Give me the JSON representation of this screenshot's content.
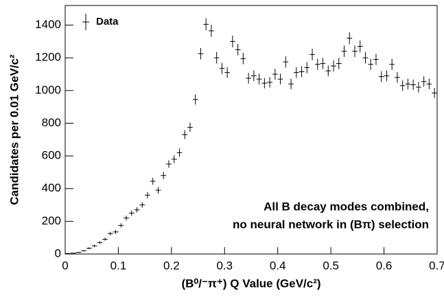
{
  "chart_data": {
    "type": "errorbar",
    "xlabel": "(B⁰/⁻π⁺)  Q Value (GeV/c²)",
    "ylabel": "Candidates per 0.01 GeV/c²",
    "annotations": [
      "All B decay modes combined,",
      "no neural network in (Bπ) selection"
    ],
    "xlim": [
      0,
      0.7
    ],
    "ylim": [
      0,
      1520
    ],
    "xticks": [
      0,
      0.1,
      0.2,
      0.3,
      0.4,
      0.5,
      0.6,
      0.7
    ],
    "yticks": [
      0,
      200,
      400,
      600,
      800,
      1000,
      1200,
      1400
    ],
    "legend": "upper left",
    "xerr": 0.005,
    "series": [
      {
        "name": "Data",
        "color": "#000000",
        "x": [
          0.005,
          0.015,
          0.025,
          0.035,
          0.045,
          0.055,
          0.065,
          0.075,
          0.085,
          0.095,
          0.105,
          0.115,
          0.125,
          0.135,
          0.145,
          0.155,
          0.165,
          0.175,
          0.185,
          0.195,
          0.205,
          0.215,
          0.225,
          0.235,
          0.245,
          0.255,
          0.265,
          0.275,
          0.285,
          0.295,
          0.305,
          0.315,
          0.325,
          0.335,
          0.345,
          0.355,
          0.365,
          0.375,
          0.385,
          0.395,
          0.405,
          0.415,
          0.425,
          0.435,
          0.445,
          0.455,
          0.465,
          0.475,
          0.485,
          0.495,
          0.505,
          0.515,
          0.525,
          0.535,
          0.545,
          0.555,
          0.565,
          0.575,
          0.585,
          0.595,
          0.605,
          0.615,
          0.625,
          0.635,
          0.645,
          0.655,
          0.665,
          0.675,
          0.685,
          0.695
        ],
        "values": [
          3,
          5,
          10,
          20,
          35,
          50,
          70,
          90,
          125,
          135,
          175,
          220,
          250,
          270,
          300,
          360,
          445,
          390,
          480,
          550,
          580,
          620,
          730,
          775,
          945,
          1225,
          1405,
          1365,
          1200,
          1135,
          1110,
          1300,
          1250,
          1195,
          1075,
          1090,
          1070,
          1045,
          1050,
          1100,
          1070,
          1175,
          1040,
          1110,
          1115,
          1140,
          1220,
          1160,
          1165,
          1120,
          1150,
          1165,
          1240,
          1320,
          1240,
          1270,
          1200,
          1160,
          1190,
          1085,
          1090,
          1160,
          1080,
          1030,
          1040,
          1035,
          1020,
          1055,
          1040,
          985
        ],
        "errors": [
          2,
          2,
          3,
          4,
          6,
          7,
          8,
          9,
          11,
          12,
          13,
          15,
          16,
          16,
          17,
          19,
          21,
          20,
          22,
          23,
          24,
          25,
          27,
          28,
          31,
          35,
          37,
          37,
          35,
          34,
          33,
          36,
          35,
          35,
          33,
          33,
          33,
          32,
          32,
          33,
          33,
          34,
          32,
          33,
          33,
          34,
          35,
          34,
          34,
          33,
          34,
          34,
          35,
          36,
          35,
          36,
          35,
          34,
          34,
          33,
          33,
          34,
          33,
          32,
          32,
          32,
          32,
          32,
          32,
          31
        ]
      }
    ]
  }
}
